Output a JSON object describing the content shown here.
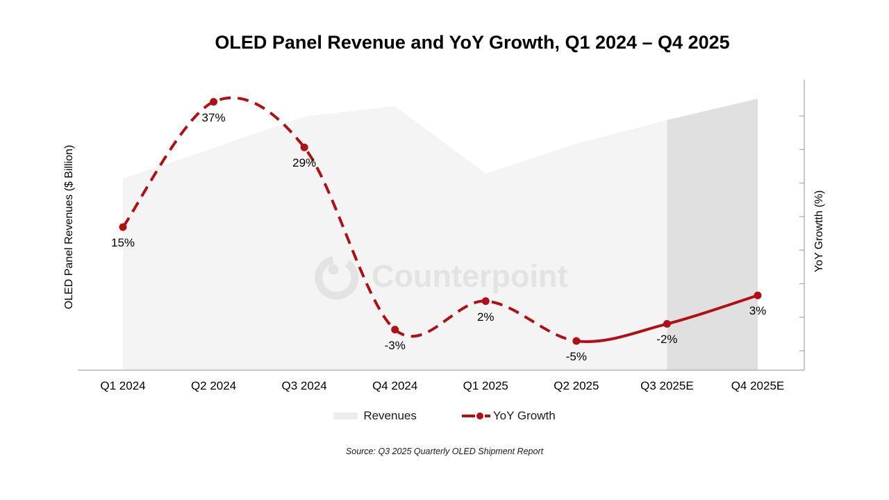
{
  "title": "OLED Panel Revenue and YoY Growth, Q1 2024 – Q4 2025",
  "y_axis_left_label": "OLED Panel Revenues ($ Billion)",
  "y_axis_right_label": "YoY Growtth (%)",
  "watermark_text": "Counterpoint",
  "source": "Source: Q3 2025 Quarterly OLED Shipment Report",
  "legend": {
    "revenues_label": "Revenues",
    "yoy_label": "YoY Growth"
  },
  "colors": {
    "line_red": "#B20F14",
    "area_light": "#F4F4F4",
    "area_dark": "#E0E0E0",
    "axis_gray": "#A9A9A9",
    "watermark_gray": "#E3E3E3",
    "label_black": "#000000"
  },
  "chart_data": {
    "type": "combo",
    "title": "OLED Panel Revenue and YoY Growth, Q1 2024 – Q4 2025",
    "categories": [
      "Q1 2024",
      "Q2 2024",
      "Q3 2024",
      "Q4 2024",
      "Q1 2025",
      "Q2 2025",
      "Q3 2025E",
      "Q4 2025E"
    ],
    "xlabel": "",
    "ylabel_left": "OLED Panel Revenues ($ Billion)",
    "ylabel_right": "YoY Growtth (%)",
    "axis_ticks_labeled": false,
    "gridlines": false,
    "legend_position": "bottom",
    "series": [
      {
        "name": "Revenues",
        "type": "area",
        "axis": "left",
        "units": "relative index (left axis shows no numeric ticks; 100 = tallest quarter)",
        "values": [
          70.6,
          81.8,
          93.4,
          97.2,
          72.4,
          83.4,
          92.1,
          100
        ],
        "forecast_from_index": 6,
        "note": "Q3 2025E and Q4 2025E shaded darker as estimates"
      },
      {
        "name": "YoY Growth",
        "type": "line",
        "axis": "right",
        "units": "percent",
        "values": [
          15,
          37,
          29,
          -3,
          2,
          -5,
          -2,
          3
        ],
        "labels": [
          "15%",
          "37%",
          "29%",
          "-3%",
          "2%",
          "-5%",
          "-2%",
          "3%"
        ],
        "line_style": "dashed through Q2 2025, solid for Q3 2025E and Q4 2025E",
        "solid_from_index": 5
      }
    ]
  }
}
